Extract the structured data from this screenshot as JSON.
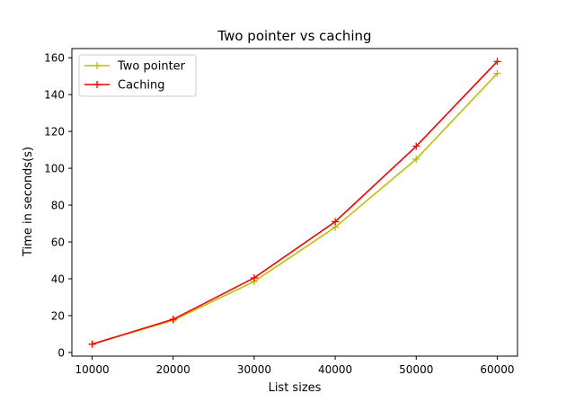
{
  "chart_data": {
    "type": "line",
    "title": "Two pointer vs caching",
    "xlabel": "List sizes",
    "ylabel": "Time in seconds(s)",
    "x": [
      10000,
      20000,
      30000,
      40000,
      50000,
      60000
    ],
    "xticks": [
      10000,
      20000,
      30000,
      40000,
      50000,
      60000
    ],
    "yticks": [
      0,
      20,
      40,
      60,
      80,
      100,
      120,
      140,
      160
    ],
    "xlim": [
      7500,
      62500
    ],
    "ylim": [
      -2,
      165
    ],
    "grid": false,
    "legend": {
      "position": "upper-left"
    },
    "series": [
      {
        "name": "Two pointer",
        "color": "#bfbf00",
        "marker": "+",
        "values": [
          4.5,
          17.5,
          38.5,
          68,
          105,
          151.5
        ]
      },
      {
        "name": "Caching",
        "color": "#ff0000",
        "marker": "+",
        "values": [
          4.5,
          18,
          40.5,
          71,
          112,
          158
        ]
      }
    ]
  }
}
